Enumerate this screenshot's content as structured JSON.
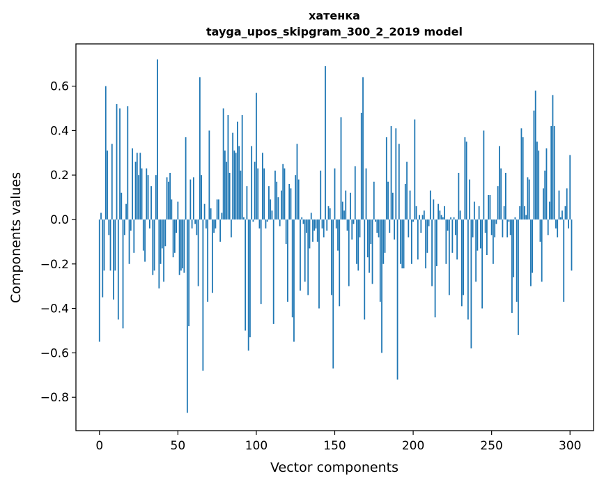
{
  "chart_data": {
    "type": "bar",
    "title_line1": "хатенка",
    "title_line2": "tayga_upos_skipgram_300_2_2019 model",
    "xlabel": "Vector components",
    "ylabel": "Components values",
    "xlim": [
      -15,
      315
    ],
    "ylim": [
      -0.95,
      0.79
    ],
    "xticks": [
      0,
      50,
      100,
      150,
      200,
      250,
      300
    ],
    "xtick_labels": [
      "0",
      "50",
      "100",
      "150",
      "200",
      "250",
      "300"
    ],
    "yticks": [
      -0.8,
      -0.6,
      -0.4,
      -0.2,
      0.0,
      0.2,
      0.4,
      0.6
    ],
    "ytick_labels": [
      "−0.8",
      "−0.6",
      "−0.4",
      "−0.2",
      "0.0",
      "0.2",
      "0.4",
      "0.6"
    ],
    "bar_color": "#1f77b4",
    "values": [
      -0.55,
      0.03,
      -0.35,
      -0.23,
      0.6,
      0.31,
      -0.07,
      -0.23,
      0.34,
      -0.36,
      -0.23,
      0.52,
      -0.45,
      0.5,
      0.12,
      -0.49,
      -0.07,
      0.07,
      0.51,
      -0.2,
      -0.05,
      0.32,
      -0.15,
      0.26,
      0.3,
      0.2,
      0.3,
      0.23,
      -0.14,
      -0.19,
      0.23,
      0.2,
      -0.04,
      0.15,
      -0.25,
      -0.23,
      0.2,
      0.72,
      -0.31,
      -0.2,
      -0.13,
      -0.28,
      -0.12,
      0.19,
      0.17,
      0.21,
      0.09,
      -0.17,
      -0.15,
      -0.06,
      0.08,
      -0.25,
      -0.23,
      -0.22,
      -0.24,
      0.37,
      -0.87,
      -0.48,
      0.18,
      -0.04,
      0.19,
      -0.02,
      -0.07,
      -0.3,
      0.64,
      0.2,
      -0.68,
      0.07,
      -0.04,
      -0.37,
      0.4,
      0.05,
      -0.33,
      -0.06,
      -0.04,
      0.09,
      0.09,
      -0.1,
      0.03,
      0.5,
      0.31,
      0.26,
      0.47,
      0.21,
      -0.08,
      0.39,
      0.31,
      0.3,
      0.44,
      0.33,
      0.22,
      0.47,
      0.01,
      -0.5,
      0.15,
      -0.59,
      -0.53,
      0.33,
      -0.01,
      0.26,
      0.57,
      0.23,
      -0.04,
      -0.38,
      0.3,
      0.23,
      -0.04,
      -0.01,
      0.15,
      0.09,
      0.04,
      -0.47,
      0.22,
      0.17,
      0.1,
      -0.03,
      0.13,
      0.25,
      0.23,
      -0.11,
      -0.37,
      0.16,
      0.14,
      -0.44,
      -0.55,
      0.2,
      0.34,
      0.18,
      -0.32,
      0.01,
      -0.02,
      -0.28,
      -0.06,
      -0.34,
      -0.13,
      0.03,
      -0.1,
      -0.05,
      -0.04,
      -0.1,
      -0.4,
      0.22,
      -0.04,
      -0.08,
      0.69,
      -0.05,
      0.06,
      0.05,
      -0.34,
      -0.67,
      0.23,
      -0.04,
      -0.14,
      -0.39,
      0.46,
      0.08,
      0.04,
      0.13,
      -0.05,
      -0.3,
      0.12,
      -0.09,
      -0.02,
      0.24,
      -0.2,
      -0.23,
      -0.08,
      0.48,
      0.64,
      -0.45,
      0.23,
      -0.17,
      -0.24,
      -0.11,
      -0.29,
      0.17,
      -0.01,
      -0.06,
      -0.08,
      -0.37,
      -0.6,
      -0.2,
      -0.15,
      0.37,
      0.17,
      -0.06,
      0.42,
      0.12,
      -0.09,
      0.41,
      -0.72,
      0.34,
      -0.2,
      -0.22,
      -0.22,
      0.16,
      0.26,
      -0.08,
      0.13,
      -0.2,
      -0.01,
      0.45,
      0.06,
      -0.18,
      0.02,
      -0.06,
      0.02,
      0.04,
      -0.22,
      -0.15,
      -0.03,
      0.13,
      -0.3,
      0.09,
      -0.44,
      -0.21,
      0.07,
      0.04,
      0.02,
      0.01,
      0.06,
      -0.2,
      -0.05,
      -0.34,
      0.01,
      -0.15,
      0.01,
      -0.07,
      -0.18,
      0.21,
      0.04,
      -0.39,
      -0.34,
      0.37,
      0.35,
      -0.45,
      0.18,
      -0.58,
      -0.08,
      0.08,
      -0.28,
      -0.14,
      0.06,
      -0.13,
      -0.4,
      0.4,
      -0.06,
      -0.16,
      0.11,
      0.11,
      -0.07,
      -0.2,
      -0.08,
      -0.02,
      0.15,
      0.33,
      0.23,
      -0.08,
      0.06,
      0.21,
      -0.08,
      -0.01,
      -0.07,
      -0.42,
      -0.26,
      0.01,
      -0.37,
      -0.52,
      0.06,
      0.41,
      0.37,
      0.06,
      0.02,
      0.19,
      0.18,
      -0.3,
      -0.24,
      0.49,
      0.58,
      0.35,
      0.31,
      -0.1,
      -0.28,
      0.14,
      0.22,
      0.32,
      -0.07,
      0.08,
      0.42,
      0.56,
      0.42,
      -0.04,
      -0.08,
      0.13,
      0.01,
      0.04,
      -0.37,
      0.06,
      0.14,
      -0.04,
      0.29,
      -0.23
    ]
  }
}
